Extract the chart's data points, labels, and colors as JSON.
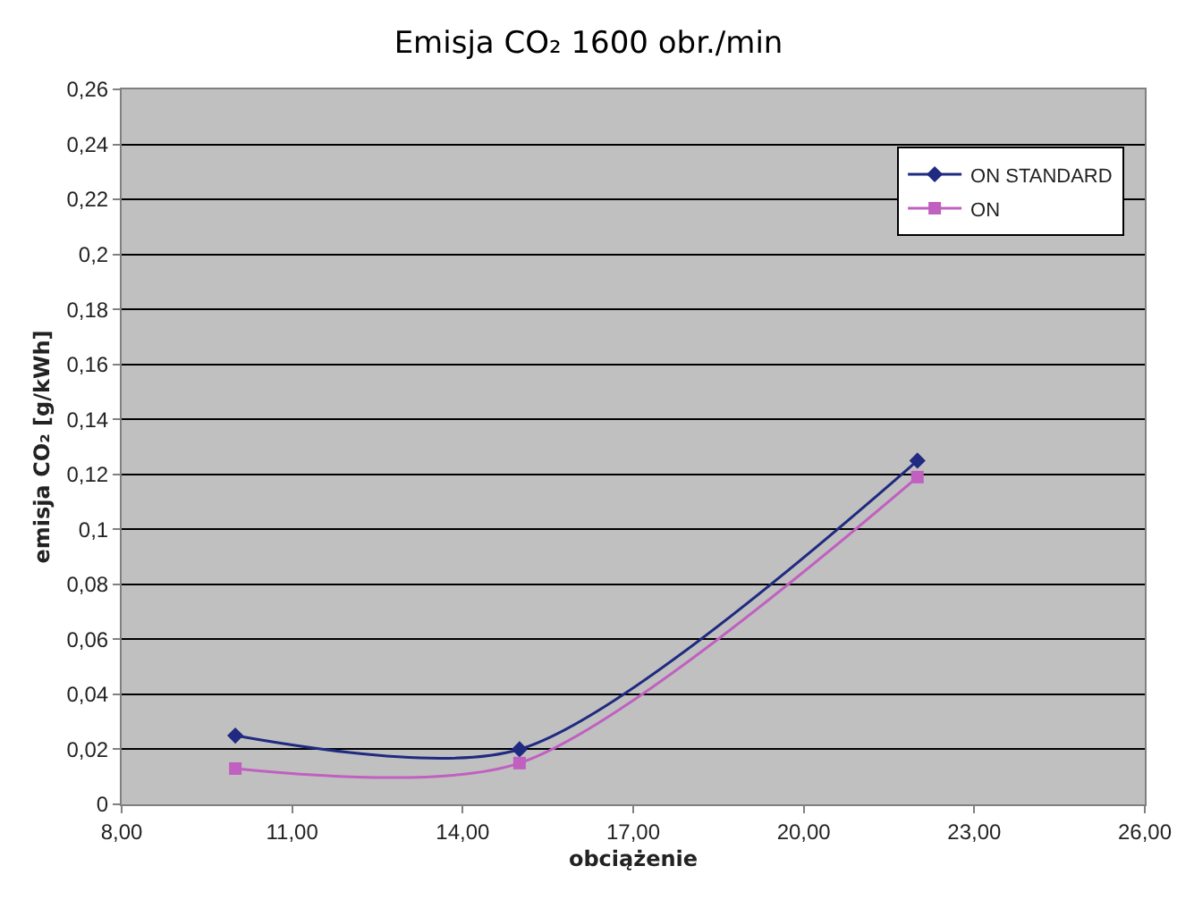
{
  "chart_data": {
    "type": "line",
    "title": "Emisja CO₂ 1600 obr./min",
    "xlabel": "obciążenie",
    "ylabel": "emisja CO₂ [g/kWh]",
    "x": [
      10,
      15,
      22
    ],
    "series": [
      {
        "name": "ON STANDARD",
        "color": "#1f2a80",
        "marker": "diamond",
        "values": [
          0.025,
          0.02,
          0.125
        ]
      },
      {
        "name": "ON",
        "color": "#c060c0",
        "marker": "square",
        "values": [
          0.013,
          0.015,
          0.119
        ]
      }
    ],
    "xlim": [
      8,
      26
    ],
    "xticks": [
      {
        "value": 8,
        "label": "8,00"
      },
      {
        "value": 11,
        "label": "11,00"
      },
      {
        "value": 14,
        "label": "14,00"
      },
      {
        "value": 17,
        "label": "17,00"
      },
      {
        "value": 20,
        "label": "20,00"
      },
      {
        "value": 23,
        "label": "23,00"
      },
      {
        "value": 26,
        "label": "26,00"
      }
    ],
    "ylim": [
      0,
      0.26
    ],
    "yticks": [
      0,
      {
        "value": 0.02,
        "label": "0,02"
      },
      {
        "value": 0.04,
        "label": "0,04"
      },
      {
        "value": 0.06,
        "label": "0,06"
      },
      {
        "value": 0.08,
        "label": "0,08"
      },
      {
        "value": 0.1,
        "label": "0,1"
      },
      {
        "value": 0.12,
        "label": "0,12"
      },
      {
        "value": 0.14,
        "label": "0,14"
      },
      {
        "value": 0.16,
        "label": "0,16"
      },
      {
        "value": 0.18,
        "label": "0,18"
      },
      {
        "value": 0.2,
        "label": "0,2"
      },
      {
        "value": 0.22,
        "label": "0,22"
      },
      {
        "value": 0.24,
        "label": "0,24"
      },
      {
        "value": 0.26,
        "label": "0,26"
      }
    ],
    "grid": "y",
    "legend": "top right",
    "line_style": "solid"
  }
}
